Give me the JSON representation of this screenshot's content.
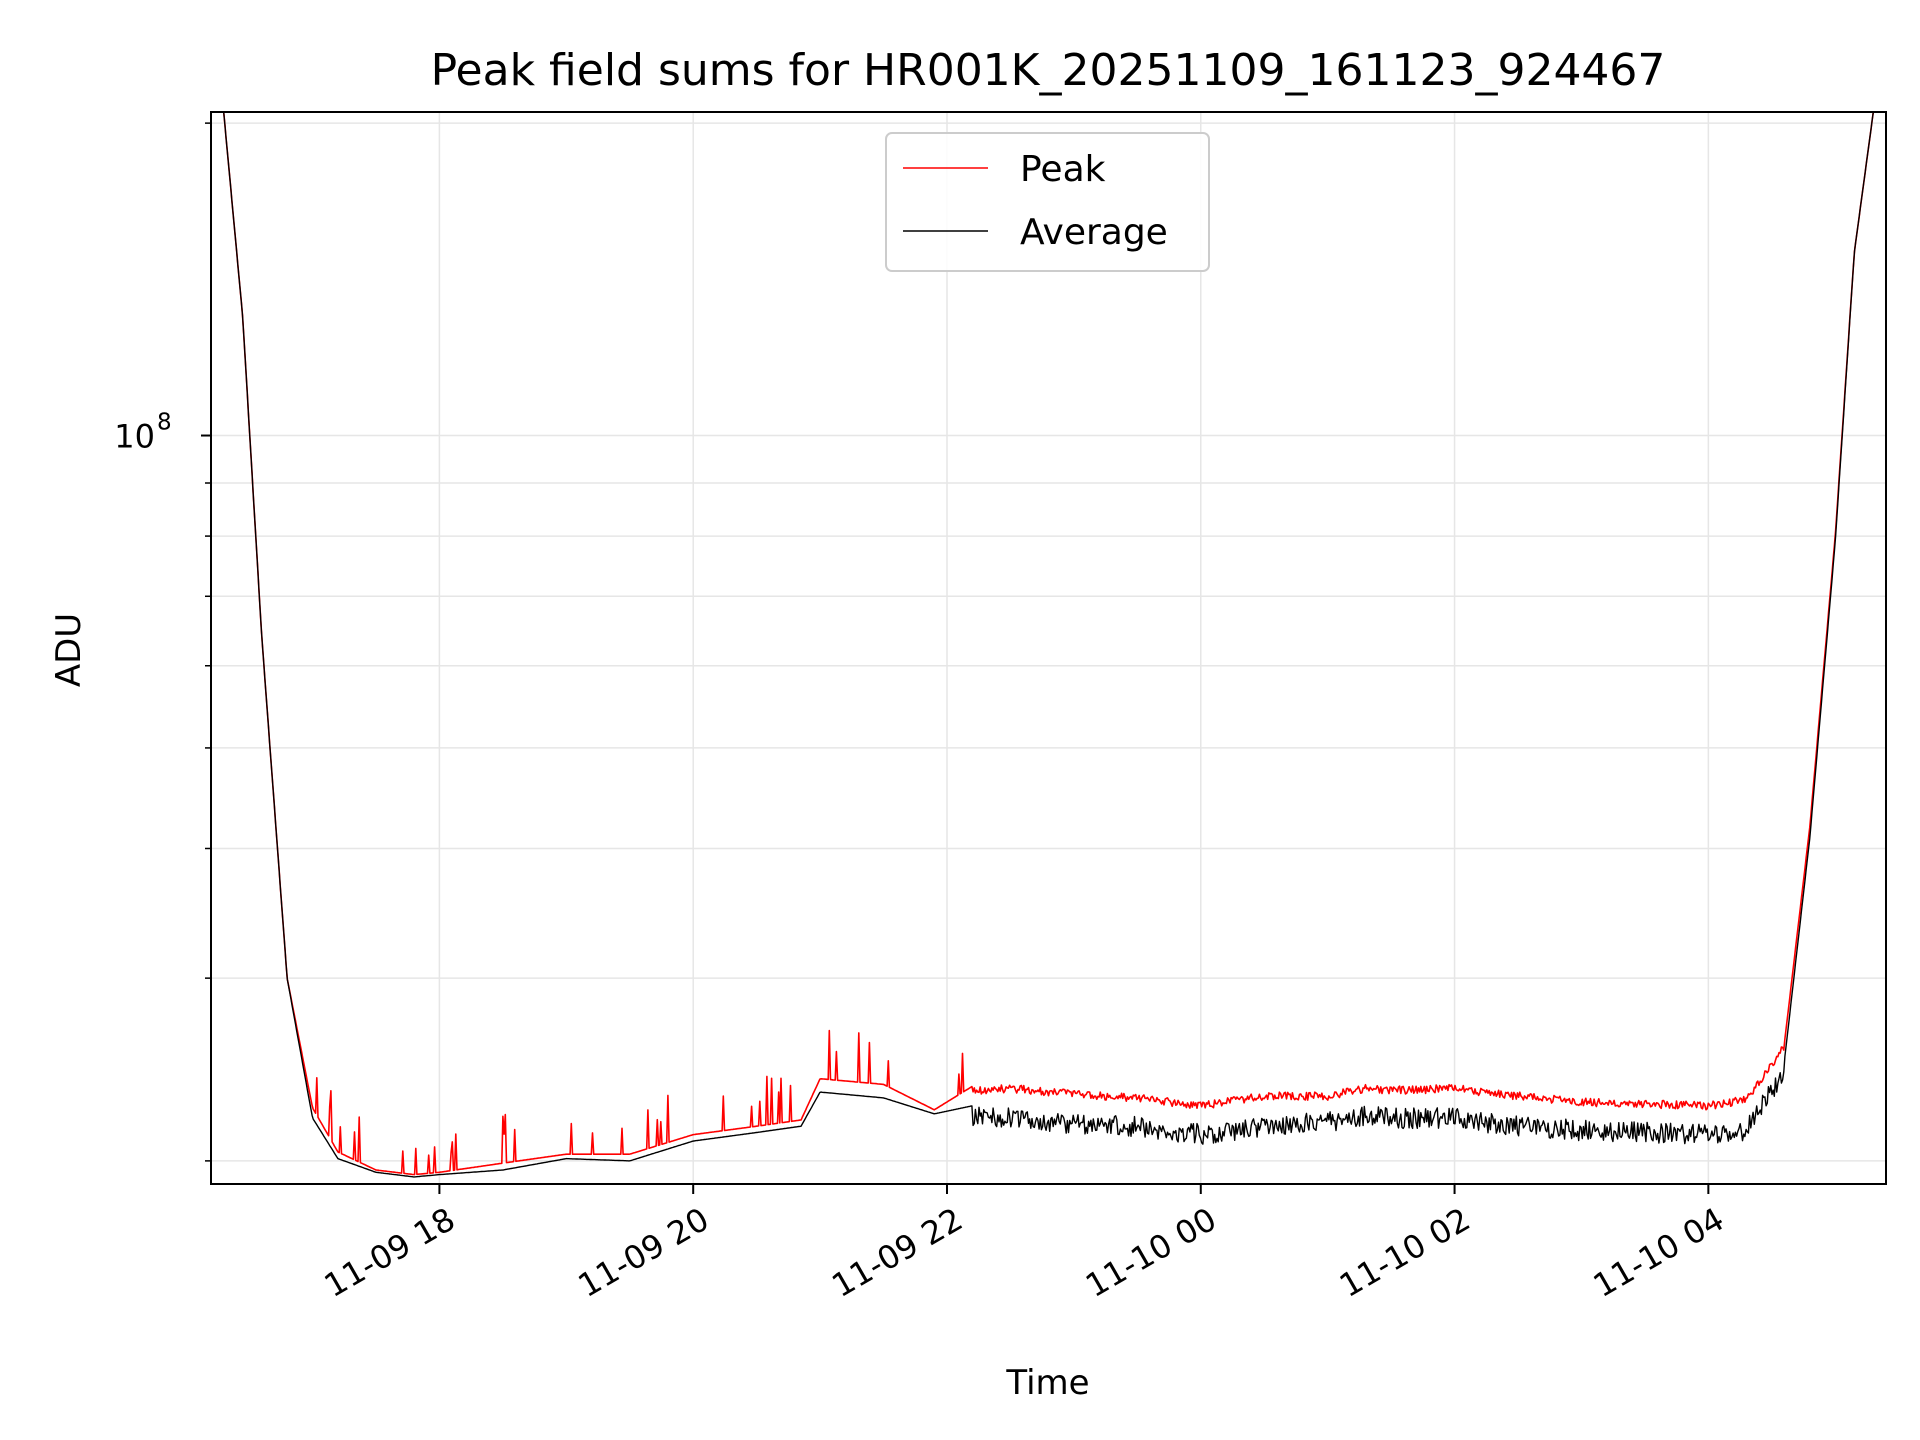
{
  "chart_data": {
    "type": "line",
    "title": "Peak field sums for HR001K_20251109_161123_924467",
    "xlabel": "Time",
    "ylabel": "ADU",
    "yscale": "log",
    "ylim": [
      19000000,
      205000000
    ],
    "xlim": [
      16.2,
      29.4
    ],
    "grid": true,
    "legend_position": "upper center",
    "x_units": "hours since 2025-11-09 00:00",
    "x_ticks": [
      {
        "value": 18,
        "label": "11-09 18"
      },
      {
        "value": 20,
        "label": "11-09 20"
      },
      {
        "value": 22,
        "label": "11-09 22"
      },
      {
        "value": 24,
        "label": "11-10 00"
      },
      {
        "value": 26,
        "label": "11-10 02"
      },
      {
        "value": 28,
        "label": "11-10 04"
      }
    ],
    "y_major_ticks": [
      {
        "value": 100000000,
        "base": "10",
        "exp": "8"
      }
    ],
    "y_minor_ticks": [
      20000000,
      30000000,
      40000000,
      50000000,
      60000000,
      70000000,
      80000000,
      90000000,
      200000000
    ],
    "series": [
      {
        "name": "Peak",
        "color": "#ff0000",
        "x": [
          16.3,
          16.45,
          16.6,
          16.8,
          17.0,
          17.2,
          17.5,
          17.8,
          18.0,
          18.5,
          19.0,
          19.5,
          20.0,
          20.5,
          20.85,
          21.0,
          21.5,
          21.9,
          22.2,
          22.5,
          23.0,
          23.5,
          24.0,
          24.5,
          25.0,
          25.3,
          25.5,
          26.0,
          26.5,
          27.0,
          27.5,
          28.0,
          28.3,
          28.6,
          28.8,
          29.0,
          29.15,
          29.3
        ],
        "y": [
          205000000,
          130000000,
          64000000,
          30000000,
          22500000,
          20400000,
          19600000,
          19400000,
          19500000,
          19900000,
          20300000,
          20300000,
          21200000,
          21600000,
          21900000,
          24000000,
          23700000,
          22400000,
          23600000,
          23700000,
          23400000,
          23200000,
          22800000,
          23300000,
          23300000,
          23700000,
          23600000,
          23700000,
          23300000,
          23000000,
          22900000,
          22800000,
          23100000,
          26000000,
          42000000,
          80000000,
          150000000,
          205000000
        ]
      },
      {
        "name": "Average",
        "color": "#000000",
        "x": [
          16.3,
          16.45,
          16.6,
          16.8,
          17.0,
          17.2,
          17.5,
          17.8,
          18.0,
          18.5,
          19.0,
          19.5,
          20.0,
          20.5,
          20.85,
          21.0,
          21.5,
          21.9,
          22.2,
          22.5,
          23.0,
          23.5,
          24.0,
          24.5,
          25.0,
          25.3,
          25.5,
          26.0,
          26.5,
          27.0,
          27.5,
          28.0,
          28.3,
          28.6,
          28.8,
          29.0,
          29.15,
          29.3
        ],
        "y": [
          205000000,
          130000000,
          64000000,
          30000000,
          22000000,
          20100000,
          19500000,
          19300000,
          19400000,
          19600000,
          20100000,
          20000000,
          20900000,
          21300000,
          21600000,
          23300000,
          23000000,
          22200000,
          22600000,
          22500000,
          22200000,
          22100000,
          21700000,
          22100000,
          22300000,
          22600000,
          22500000,
          22500000,
          22100000,
          21900000,
          21800000,
          21700000,
          21900000,
          25000000,
          41000000,
          79000000,
          150000000,
          205000000
        ]
      }
    ]
  }
}
